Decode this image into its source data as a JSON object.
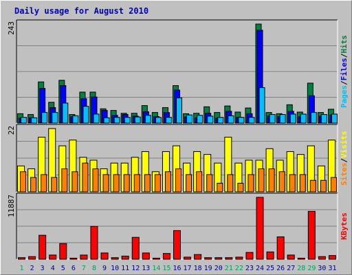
{
  "title": "Daily usage for August 2010",
  "colors": {
    "title": "#0000c0",
    "hits": "#008040",
    "files": "#0000ff",
    "pages": "#00c0ff",
    "visits": "#ffff00",
    "sites": "#ff8000",
    "kbytes": "#ff0000",
    "weekend_day": "#00a060",
    "weekday": "#000080",
    "plot_bg": "#c0c0c0",
    "grid": "#808080"
  },
  "chart_data": [
    {
      "type": "bar",
      "title": "Daily usage for August 2010",
      "panel": "top",
      "ymax_label": "243",
      "ylim": [
        0,
        243
      ],
      "grid": true,
      "right_labels": [
        "Pages",
        "Files",
        "Hits"
      ],
      "categories": [
        "1",
        "2",
        "3",
        "4",
        "5",
        "6",
        "7",
        "8",
        "9",
        "10",
        "11",
        "12",
        "13",
        "14",
        "15",
        "16",
        "17",
        "18",
        "19",
        "20",
        "21",
        "22",
        "23",
        "24",
        "25",
        "26",
        "27",
        "28",
        "29",
        "30",
        "31"
      ],
      "series": [
        {
          "name": "Hits",
          "values": [
            23,
            21,
            101,
            51,
            105,
            21,
            76,
            76,
            35,
            31,
            24,
            24,
            43,
            26,
            38,
            92,
            23,
            24,
            40,
            26,
            42,
            27,
            37,
            243,
            26,
            23,
            45,
            27,
            98,
            26,
            34
          ]
        },
        {
          "name": "Files",
          "values": [
            12,
            13,
            85,
            38,
            92,
            16,
            60,
            64,
            31,
            19,
            21,
            17,
            28,
            16,
            26,
            81,
            15,
            13,
            24,
            12,
            29,
            14,
            23,
            228,
            17,
            16,
            29,
            16,
            67,
            17,
            20
          ]
        },
        {
          "name": "Pages",
          "values": [
            14,
            13,
            26,
            26,
            49,
            18,
            41,
            22,
            13,
            14,
            14,
            15,
            19,
            14,
            14,
            62,
            20,
            19,
            17,
            14,
            18,
            14,
            14,
            87,
            21,
            21,
            22,
            22,
            26,
            21,
            22
          ]
        }
      ]
    },
    {
      "type": "bar",
      "panel": "middle",
      "ymax_label": "22",
      "ylim": [
        0,
        22
      ],
      "grid": true,
      "right_labels": [
        "Sites",
        "Visits"
      ],
      "categories": [
        "1",
        "2",
        "3",
        "4",
        "5",
        "6",
        "7",
        "8",
        "9",
        "10",
        "11",
        "12",
        "13",
        "14",
        "15",
        "16",
        "17",
        "18",
        "19",
        "20",
        "21",
        "22",
        "23",
        "24",
        "25",
        "26",
        "27",
        "28",
        "29",
        "30",
        "31"
      ],
      "series": [
        {
          "name": "Visits",
          "values": [
            9,
            8,
            19,
            22,
            16,
            18,
            12,
            11,
            8,
            10,
            10,
            12,
            14,
            7,
            14,
            16,
            10,
            14,
            13,
            10,
            19,
            10,
            11,
            11,
            15,
            11,
            14,
            13,
            16,
            9,
            18
          ]
        },
        {
          "name": "Sites",
          "values": [
            7,
            5,
            6,
            5,
            8,
            7,
            10,
            8,
            6,
            6,
            6,
            6,
            6,
            6,
            7,
            8,
            6,
            7,
            6,
            3,
            6,
            3,
            6,
            8,
            8,
            7,
            6,
            6,
            4,
            4,
            5
          ]
        }
      ]
    },
    {
      "type": "bar",
      "panel": "bottom",
      "ymax_label": "11887",
      "ylim": [
        0,
        11887
      ],
      "grid": true,
      "right_labels": [
        "KBytes"
      ],
      "categories": [
        "1",
        "2",
        "3",
        "4",
        "5",
        "6",
        "7",
        "8",
        "9",
        "10",
        "11",
        "12",
        "13",
        "14",
        "15",
        "16",
        "17",
        "18",
        "19",
        "20",
        "21",
        "22",
        "23",
        "24",
        "25",
        "26",
        "27",
        "28",
        "29",
        "30",
        "31"
      ],
      "series": [
        {
          "name": "KBytes",
          "values": [
            300,
            500,
            4600,
            800,
            3000,
            200,
            800,
            6300,
            1200,
            300,
            600,
            4200,
            1200,
            200,
            1100,
            5500,
            400,
            900,
            300,
            300,
            300,
            400,
            1300,
            11887,
            1400,
            4300,
            800,
            200,
            9200,
            500,
            700
          ]
        }
      ]
    }
  ],
  "weekend_days": [
    "1",
    "7",
    "8",
    "14",
    "15",
    "21",
    "22",
    "28",
    "29"
  ]
}
